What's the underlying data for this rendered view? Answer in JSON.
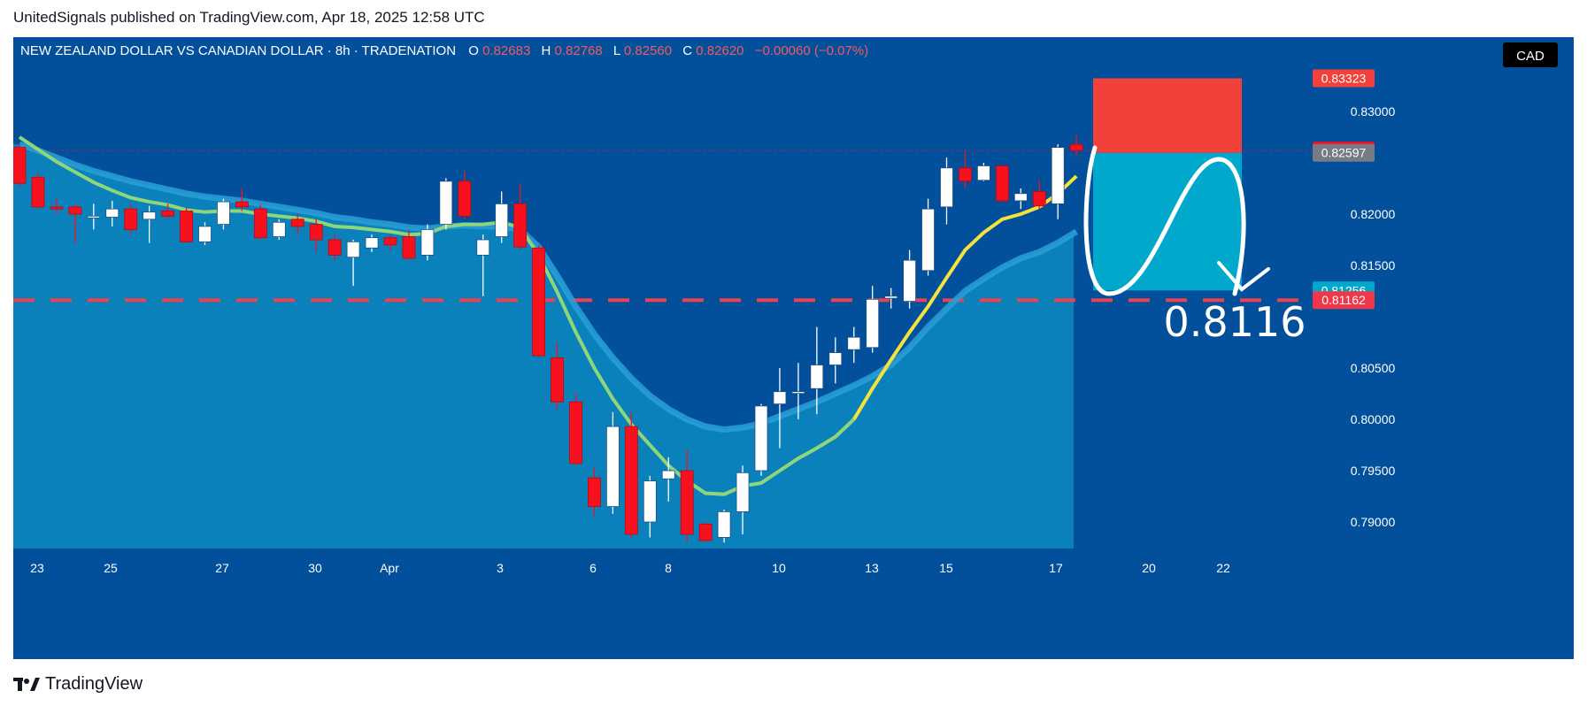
{
  "attribution": "UnitedSignals published on TradingView.com, Apr 18, 2025 12:58 UTC",
  "brand": "TradingView",
  "colors": {
    "background": "#02509b",
    "up": "#ffffff",
    "down": "#f7101e",
    "ema_fast": "#f5e23c",
    "ema_slow_band": "#2aa0d8",
    "area_fill": "#0b84bd",
    "stop_zone": "#f2403a",
    "target_zone": "#00a9cc",
    "dashed_level": "#f0404d",
    "ohlc_value": "#f05a62"
  },
  "header": {
    "symbol": "NEW ZEALAND DOLLAR VS CANADIAN DOLLAR · 8h · TRADENATION",
    "o_label": "O",
    "o_value": "0.82683",
    "h_label": "H",
    "h_value": "0.82768",
    "l_label": "L",
    "l_value": "0.82560",
    "c_label": "C",
    "c_value": "0.82620",
    "change": "−0.00060 (−0.07%)"
  },
  "currency_badge": "CAD",
  "annotation_target": "0.8116",
  "chart_data": {
    "type": "candlestick",
    "symbol": "NZDCAD",
    "timeframe": "8h",
    "currency": "CAD",
    "y_ticks": [
      0.79,
      0.795,
      0.8,
      0.805,
      0.815,
      0.82,
      0.83
    ],
    "y_tick_labels": [
      "0.79000",
      "0.79500",
      "0.80000",
      "0.80500",
      "0.81500",
      "0.82000",
      "0.83000"
    ],
    "x_tick_labels": [
      "23",
      "25",
      "27",
      "30",
      "Apr",
      "3",
      "6",
      "8",
      "10",
      "13",
      "15",
      "17",
      "20",
      "22"
    ],
    "price_labels": [
      {
        "value": 0.83323,
        "text": "0.83323",
        "color": "#f2403a"
      },
      {
        "value": 0.8262,
        "text": "0.82620",
        "color": "#f7101e"
      },
      {
        "value": 0.82597,
        "text": "0.82597",
        "color": "#787b86"
      },
      {
        "value": 0.81256,
        "text": "0.81256",
        "color": "#00a9cc"
      },
      {
        "value": 0.81162,
        "text": "0.81162",
        "color": "#f2364a"
      }
    ],
    "candles": [
      {
        "o": 0.8265,
        "h": 0.8268,
        "l": 0.8227,
        "c": 0.823
      },
      {
        "o": 0.8236,
        "h": 0.824,
        "l": 0.8205,
        "c": 0.8207
      },
      {
        "o": 0.8207,
        "h": 0.8215,
        "l": 0.82,
        "c": 0.8205
      },
      {
        "o": 0.8207,
        "h": 0.821,
        "l": 0.8172,
        "c": 0.82
      },
      {
        "o": 0.8197,
        "h": 0.821,
        "l": 0.8185,
        "c": 0.8198
      },
      {
        "o": 0.8197,
        "h": 0.8213,
        "l": 0.8188,
        "c": 0.8205
      },
      {
        "o": 0.8205,
        "h": 0.821,
        "l": 0.818,
        "c": 0.8185
      },
      {
        "o": 0.8195,
        "h": 0.8208,
        "l": 0.8172,
        "c": 0.8202
      },
      {
        "o": 0.8203,
        "h": 0.821,
        "l": 0.8195,
        "c": 0.8198
      },
      {
        "o": 0.8203,
        "h": 0.8207,
        "l": 0.8172,
        "c": 0.8173
      },
      {
        "o": 0.8173,
        "h": 0.8192,
        "l": 0.817,
        "c": 0.8188
      },
      {
        "o": 0.819,
        "h": 0.8215,
        "l": 0.8185,
        "c": 0.8212
      },
      {
        "o": 0.8212,
        "h": 0.8225,
        "l": 0.8203,
        "c": 0.8207
      },
      {
        "o": 0.8205,
        "h": 0.821,
        "l": 0.8175,
        "c": 0.8177
      },
      {
        "o": 0.8178,
        "h": 0.8195,
        "l": 0.8175,
        "c": 0.8192
      },
      {
        "o": 0.8195,
        "h": 0.82,
        "l": 0.818,
        "c": 0.8188
      },
      {
        "o": 0.819,
        "h": 0.8195,
        "l": 0.8163,
        "c": 0.8175
      },
      {
        "o": 0.8175,
        "h": 0.818,
        "l": 0.8155,
        "c": 0.816
      },
      {
        "o": 0.8158,
        "h": 0.8175,
        "l": 0.813,
        "c": 0.8173
      },
      {
        "o": 0.8167,
        "h": 0.818,
        "l": 0.8163,
        "c": 0.8177
      },
      {
        "o": 0.8177,
        "h": 0.818,
        "l": 0.8165,
        "c": 0.817
      },
      {
        "o": 0.8178,
        "h": 0.8185,
        "l": 0.8155,
        "c": 0.8157
      },
      {
        "o": 0.816,
        "h": 0.819,
        "l": 0.8155,
        "c": 0.8185
      },
      {
        "o": 0.819,
        "h": 0.8235,
        "l": 0.8185,
        "c": 0.8232
      },
      {
        "o": 0.8232,
        "h": 0.8242,
        "l": 0.8195,
        "c": 0.8198
      },
      {
        "o": 0.816,
        "h": 0.818,
        "l": 0.812,
        "c": 0.8175
      },
      {
        "o": 0.8178,
        "h": 0.8222,
        "l": 0.8172,
        "c": 0.821
      },
      {
        "o": 0.821,
        "h": 0.823,
        "l": 0.8165,
        "c": 0.8168
      },
      {
        "o": 0.8167,
        "h": 0.817,
        "l": 0.806,
        "c": 0.8062
      },
      {
        "o": 0.806,
        "h": 0.8075,
        "l": 0.801,
        "c": 0.8017
      },
      {
        "o": 0.8017,
        "h": 0.8025,
        "l": 0.7955,
        "c": 0.7957
      },
      {
        "o": 0.7943,
        "h": 0.7953,
        "l": 0.7905,
        "c": 0.7915
      },
      {
        "o": 0.7915,
        "h": 0.8007,
        "l": 0.7908,
        "c": 0.7993
      },
      {
        "o": 0.7993,
        "h": 0.8007,
        "l": 0.7885,
        "c": 0.7888
      },
      {
        "o": 0.79,
        "h": 0.7945,
        "l": 0.7885,
        "c": 0.794
      },
      {
        "o": 0.7942,
        "h": 0.7963,
        "l": 0.792,
        "c": 0.795
      },
      {
        "o": 0.795,
        "h": 0.797,
        "l": 0.788,
        "c": 0.7888
      },
      {
        "o": 0.7898,
        "h": 0.79,
        "l": 0.788,
        "c": 0.7882
      },
      {
        "o": 0.7885,
        "h": 0.7912,
        "l": 0.788,
        "c": 0.791
      },
      {
        "o": 0.791,
        "h": 0.7955,
        "l": 0.7888,
        "c": 0.7948
      },
      {
        "o": 0.795,
        "h": 0.8015,
        "l": 0.7945,
        "c": 0.8013
      },
      {
        "o": 0.8015,
        "h": 0.805,
        "l": 0.7972,
        "c": 0.8027
      },
      {
        "o": 0.8027,
        "h": 0.8055,
        "l": 0.8,
        "c": 0.8027
      },
      {
        "o": 0.803,
        "h": 0.809,
        "l": 0.8005,
        "c": 0.8053
      },
      {
        "o": 0.8053,
        "h": 0.808,
        "l": 0.8035,
        "c": 0.8065
      },
      {
        "o": 0.8068,
        "h": 0.809,
        "l": 0.8055,
        "c": 0.808
      },
      {
        "o": 0.807,
        "h": 0.813,
        "l": 0.8065,
        "c": 0.8117
      },
      {
        "o": 0.8118,
        "h": 0.8128,
        "l": 0.8108,
        "c": 0.812
      },
      {
        "o": 0.8115,
        "h": 0.8165,
        "l": 0.8108,
        "c": 0.8155
      },
      {
        "o": 0.8145,
        "h": 0.8215,
        "l": 0.814,
        "c": 0.8205
      },
      {
        "o": 0.8207,
        "h": 0.8255,
        "l": 0.819,
        "c": 0.8245
      },
      {
        "o": 0.8245,
        "h": 0.8262,
        "l": 0.8225,
        "c": 0.8232
      },
      {
        "o": 0.8233,
        "h": 0.825,
        "l": 0.8232,
        "c": 0.8247
      },
      {
        "o": 0.8247,
        "h": 0.8248,
        "l": 0.8212,
        "c": 0.8213
      },
      {
        "o": 0.8213,
        "h": 0.8225,
        "l": 0.8205,
        "c": 0.822
      },
      {
        "o": 0.8222,
        "h": 0.8233,
        "l": 0.8205,
        "c": 0.8208
      },
      {
        "o": 0.821,
        "h": 0.8268,
        "l": 0.8195,
        "c": 0.8265
      },
      {
        "o": 0.8268,
        "h": 0.8277,
        "l": 0.8256,
        "c": 0.8262
      }
    ],
    "ema_fast": [
      0.8275,
      0.8263,
      0.8251,
      0.8241,
      0.8231,
      0.8223,
      0.8216,
      0.8212,
      0.8209,
      0.8204,
      0.8202,
      0.8203,
      0.8203,
      0.82,
      0.8198,
      0.8196,
      0.8193,
      0.8188,
      0.8187,
      0.8185,
      0.8183,
      0.818,
      0.8181,
      0.8188,
      0.819,
      0.819,
      0.8192,
      0.8187,
      0.816,
      0.8124,
      0.8085,
      0.805,
      0.802,
      0.7995,
      0.7975,
      0.7955,
      0.794,
      0.7928,
      0.7927,
      0.7935,
      0.7938,
      0.795,
      0.7962,
      0.7972,
      0.7983,
      0.8,
      0.803,
      0.8058,
      0.8085,
      0.811,
      0.8138,
      0.8165,
      0.8182,
      0.8195,
      0.82,
      0.8207,
      0.822,
      0.8237
    ],
    "ema_slow": [
      0.8268,
      0.8262,
      0.8255,
      0.8248,
      0.8242,
      0.8237,
      0.8232,
      0.8228,
      0.8224,
      0.822,
      0.8217,
      0.8215,
      0.8213,
      0.821,
      0.8207,
      0.8204,
      0.8201,
      0.8197,
      0.8195,
      0.8192,
      0.819,
      0.8187,
      0.8186,
      0.8188,
      0.8189,
      0.8188,
      0.8188,
      0.8185,
      0.8168,
      0.814,
      0.811,
      0.8083,
      0.806,
      0.804,
      0.8023,
      0.801,
      0.8,
      0.7993,
      0.799,
      0.7992,
      0.7996,
      0.8003,
      0.801,
      0.8017,
      0.8025,
      0.8033,
      0.8042,
      0.8053,
      0.807,
      0.809,
      0.8108,
      0.8125,
      0.8137,
      0.8148,
      0.8157,
      0.8163,
      0.8172,
      0.8183
    ],
    "levels": {
      "stop": 0.83323,
      "entry": 0.82597,
      "target": 0.81256,
      "dashed": 0.81162
    },
    "annotation": "0.8116"
  }
}
